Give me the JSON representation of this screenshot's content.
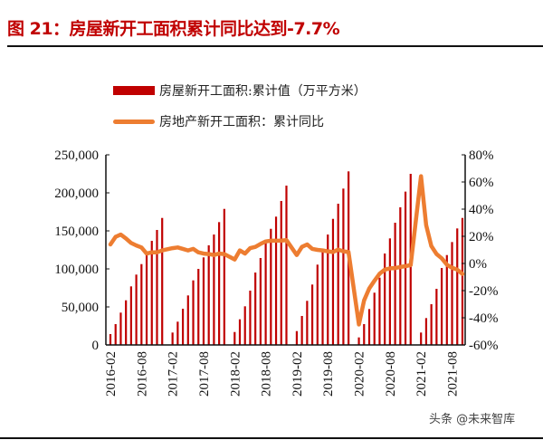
{
  "title": "图 21：房屋新开工面积累计同比达到-7.7%",
  "watermark": "头条 @未来智库",
  "chart_data": {
    "type": "bar+line",
    "title": "图 21：房屋新开工面积累计同比达到-7.7%",
    "legend_position": "top",
    "grid": false,
    "colors": {
      "bars": "#c00000",
      "line": "#ed7d31"
    },
    "categories": [
      "2016-02",
      "2016-03",
      "2016-04",
      "2016-05",
      "2016-06",
      "2016-07",
      "2016-08",
      "2016-09",
      "2016-10",
      "2016-11",
      "2016-12",
      "2017-01",
      "2017-02",
      "2017-03",
      "2017-04",
      "2017-05",
      "2017-06",
      "2017-07",
      "2017-08",
      "2017-09",
      "2017-10",
      "2017-11",
      "2017-12",
      "2018-01",
      "2018-02",
      "2018-03",
      "2018-04",
      "2018-05",
      "2018-06",
      "2018-07",
      "2018-08",
      "2018-09",
      "2018-10",
      "2018-11",
      "2018-12",
      "2019-01",
      "2019-02",
      "2019-03",
      "2019-04",
      "2019-05",
      "2019-06",
      "2019-07",
      "2019-08",
      "2019-09",
      "2019-10",
      "2019-11",
      "2019-12",
      "2020-01",
      "2020-02",
      "2020-03",
      "2020-04",
      "2020-05",
      "2020-06",
      "2020-07",
      "2020-08",
      "2020-09",
      "2020-10",
      "2020-11",
      "2020-12",
      "2021-01",
      "2021-02",
      "2021-03",
      "2021-04",
      "2021-05",
      "2021-06",
      "2021-07",
      "2021-08",
      "2021-09",
      "2021-10"
    ],
    "x_tick_labels": [
      "2016-02",
      "2016-08",
      "2017-02",
      "2017-08",
      "2018-02",
      "2018-08",
      "2019-02",
      "2019-08",
      "2020-02",
      "2020-08",
      "2021-02",
      "2021-08"
    ],
    "left_axis": {
      "ylim": [
        0,
        250000
      ],
      "ticks": [
        "0",
        "50,000",
        "100,000",
        "150,000",
        "200,000",
        "250,000"
      ]
    },
    "right_axis": {
      "ylim": [
        -60,
        80
      ],
      "unit": "%",
      "ticks": [
        "-60%",
        "-40%",
        "-20%",
        "0%",
        "20%",
        "40%",
        "60%",
        "80%"
      ]
    },
    "series": [
      {
        "name": "房屋新开工面积:累计值（万平方米）",
        "type": "bar",
        "axis": "left",
        "values": [
          14300,
          27400,
          42500,
          58700,
          77000,
          92500,
          106300,
          121400,
          136900,
          151200,
          167000,
          null,
          16300,
          30600,
          47600,
          65100,
          84900,
          100000,
          115100,
          131000,
          145200,
          161500,
          178900,
          null,
          17000,
          33700,
          50800,
          71400,
          95200,
          114300,
          134000,
          152700,
          168700,
          189300,
          209500,
          null,
          18200,
          38100,
          58000,
          79400,
          105600,
          122300,
          145200,
          165800,
          185700,
          205600,
          228200,
          null,
          9900,
          27400,
          47200,
          68700,
          88500,
          120200,
          140100,
          160700,
          181000,
          201600,
          225000,
          null,
          16300,
          35300,
          53600,
          73800,
          101200,
          118200,
          135300,
          153200,
          167000
        ]
      },
      {
        "name": "房地产新开工面积：累计同比",
        "type": "line",
        "axis": "right",
        "values": [
          14,
          19.6,
          21.3,
          18.4,
          15.1,
          13.3,
          11.8,
          7.3,
          8.2,
          8.2,
          9.6,
          null,
          11.3,
          11.8,
          10.7,
          9.6,
          10.7,
          8.2,
          7.3,
          6.9,
          6.2,
          7.3,
          6.9,
          null,
          2.9,
          9.6,
          7.3,
          11.3,
          12.2,
          14.4,
          16.2,
          16.7,
          16.7,
          16.8,
          17.2,
          null,
          6.2,
          12.2,
          14,
          10.7,
          10,
          9.6,
          8.9,
          8.4,
          10.2,
          8.9,
          8.4,
          null,
          -44.9,
          -27.2,
          -18.4,
          -12.8,
          -7.6,
          -4.5,
          -3.6,
          -3.4,
          -2.6,
          -2.0,
          -1.2,
          null,
          64.3,
          28.2,
          12.8,
          6.9,
          3.8,
          -0.9,
          -3.2,
          -4.5,
          -7.7
        ]
      }
    ]
  }
}
